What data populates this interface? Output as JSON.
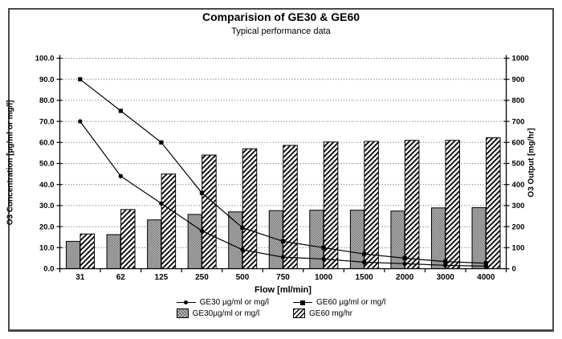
{
  "chart_data": {
    "type": "bar+line",
    "title": "Comparision of GE30 & GE60",
    "subtitle": "Typical performance data",
    "xlabel": "Flow [ml/min]",
    "ylabel_left": "O3 Concentration [µg/ml or mg/l]",
    "ylabel_right": "O3 Output [mg/hr]",
    "categories": [
      "31",
      "62",
      "125",
      "250",
      "500",
      "750",
      "1000",
      "1500",
      "2000",
      "3000",
      "4000"
    ],
    "left_axis": {
      "min": 0,
      "max": 100,
      "step": 10,
      "decimals": 1
    },
    "right_axis": {
      "min": 0,
      "max": 1000,
      "step": 100,
      "decimals": 0
    },
    "grid": "horizontal-dotted",
    "legend_position": "bottom",
    "series": [
      {
        "name": "GE30 µg/ml or mg/l",
        "type": "line",
        "marker": "circle",
        "axis": "left",
        "values": [
          70,
          44,
          31,
          18,
          9,
          5.5,
          4.6,
          3.1,
          2.4,
          1.6,
          1.2
        ]
      },
      {
        "name": "GE60 µg/ml or mg/l",
        "type": "line",
        "marker": "square",
        "axis": "left",
        "values": [
          90,
          75,
          60,
          36,
          19.5,
          13,
          10,
          7,
          5,
          3.4,
          2.6
        ]
      },
      {
        "name": "GE30µg/ml or mg/l",
        "type": "bar",
        "pattern": "checker",
        "axis": "right",
        "values": [
          130,
          162,
          232,
          258,
          270,
          276,
          278,
          278,
          274,
          289,
          290
        ]
      },
      {
        "name": "GE60 mg/hr",
        "type": "bar",
        "pattern": "hatch",
        "axis": "right",
        "values": [
          165,
          281,
          450,
          540,
          570,
          586,
          602,
          605,
          610,
          610,
          622
        ]
      }
    ]
  },
  "colors": {
    "frame_border": "#4a4a4a",
    "line": "#000000",
    "bar_outline": "#000000",
    "ge30_bar_base": "#b4b4b4",
    "ge30_bar_dots": "#7a7a7a",
    "ge60_bar_stripe": "#000000",
    "gridline": "#555555",
    "text": "#000000"
  }
}
